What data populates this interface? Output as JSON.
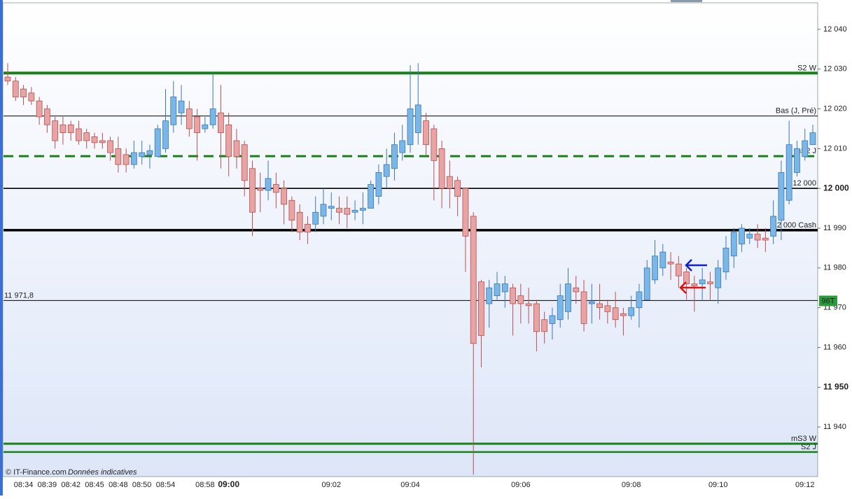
{
  "chart_data": {
    "type": "candlestick",
    "categories": [
      null,
      null,
      "08:34",
      null,
      null,
      "08:39",
      null,
      null,
      "08:42",
      null,
      null,
      "08:45",
      null,
      null,
      "08:48",
      null,
      null,
      "08:50",
      null,
      null,
      "08:54",
      null,
      null,
      null,
      null,
      "08:58",
      null,
      null,
      "09:00",
      null,
      null,
      null,
      null,
      null,
      null,
      null,
      null,
      null,
      null,
      null,
      null,
      "09:02",
      null,
      null,
      null,
      null,
      null,
      null,
      null,
      null,
      null,
      "09:04",
      null,
      null,
      null,
      null,
      null,
      null,
      null,
      null,
      null,
      null,
      null,
      null,
      null,
      "09:06",
      null,
      null,
      null,
      null,
      null,
      null,
      null,
      null,
      null,
      null,
      null,
      null,
      null,
      "09:08",
      null,
      null,
      null,
      null,
      null,
      null,
      null,
      null,
      null,
      null,
      "09:10",
      null,
      null,
      null,
      null,
      null,
      null,
      null,
      null,
      null,
      null,
      "09:12",
      null
    ],
    "open": [
      12028,
      12027,
      12025,
      12024,
      12022,
      12020,
      12017,
      12016,
      12016,
      12015,
      12014,
      12013,
      12012,
      12012,
      12010,
      12008.5,
      12006,
      12008,
      12008.5,
      12008,
      12010,
      12016,
      12019,
      12020,
      12018,
      12015,
      12016,
      12019,
      12016,
      12012,
      12011,
      12005,
      12000,
      11999.5,
      12001,
      12000,
      11997,
      11994,
      11991,
      11991,
      11993,
      11995,
      11995,
      11995,
      11994,
      11994.5,
      11995,
      11998,
      12003,
      12005,
      12009,
      12011,
      12014,
      12017,
      12015,
      12010,
      12003,
      12002,
      12000,
      11993,
      11976.5,
      11971,
      11973,
      11974,
      11975,
      11973,
      11971,
      11971,
      11967,
      11966,
      11967,
      11969,
      11975,
      11974,
      11971,
      11971,
      11970.5,
      11970,
      11968.5,
      11968,
      11970,
      11972,
      11977,
      11980,
      11981.5,
      11981,
      11979,
      11976,
      11976,
      11976.5,
      11975,
      11979,
      11983,
      11986,
      11987.5,
      11988.5,
      11987.5,
      11988,
      11992,
      11997,
      12004,
      12008,
      12011
    ],
    "high": [
      12031.5,
      12028,
      12026,
      12025.5,
      12023,
      12021,
      12018,
      12018,
      12017,
      12017,
      12015,
      12014,
      12014,
      12013,
      12013,
      12010,
      12012,
      12012,
      12011,
      12016,
      12025,
      12027,
      12026,
      12022,
      12020,
      12018,
      12029,
      12026,
      12019,
      12015,
      12012,
      12007,
      12004,
      12007,
      12004,
      12002,
      11998,
      11996,
      11993,
      11998,
      12000,
      11999,
      11998,
      11998,
      11997,
      11999,
      12002,
      12006,
      12010,
      12014,
      12016,
      12031,
      12031.5,
      12019,
      12016,
      12012,
      12007,
      12003,
      12000,
      11994,
      11977,
      11977,
      11979,
      11978,
      11976,
      11976,
      11975,
      11972,
      11969,
      11970,
      11976,
      11980,
      11978,
      11977,
      11976,
      11976,
      11972,
      11974,
      11970,
      11973,
      11976,
      11982,
      11987,
      11986,
      11984,
      11983,
      11980,
      11978,
      11980,
      11979,
      11982,
      11988,
      11990,
      11991,
      11990,
      11991,
      11990,
      11997,
      12007,
      12017,
      12012,
      12015,
      12016
    ],
    "low": [
      12026,
      12022,
      12021,
      12021,
      12016,
      12014,
      12010,
      12011,
      12012,
      12011,
      12010,
      12010,
      12010,
      12007,
      12004,
      12004,
      12005,
      12006,
      12005,
      12008,
      12009,
      12014,
      12016,
      12013,
      12007,
      12014,
      12015,
      12005,
      12003,
      12005,
      11998,
      11988,
      11994,
      11997,
      11995,
      11991,
      11989,
      11987,
      11986,
      11989,
      11991,
      11992,
      11991,
      11990,
      11992,
      11991,
      11995,
      11996,
      12000,
      12002,
      12007,
      12009,
      12011,
      12008,
      11997,
      11995,
      11995,
      11993,
      11979,
      11928,
      11955,
      11965,
      11972,
      11970,
      11963,
      11966,
      11966,
      11959,
      11961,
      11962,
      11965,
      11967,
      11971,
      11964,
      11966,
      11967,
      11966,
      11965,
      11963,
      11967,
      11965,
      11972,
      11976,
      11978,
      11977,
      11975,
      11972,
      11969,
      11972,
      11972,
      11971,
      11977,
      11980,
      11984,
      11986,
      11985,
      11984,
      11986,
      11987,
      11996,
      12003,
      12007,
      12011
    ],
    "close": [
      12027,
      12023,
      12023,
      12022,
      12018,
      12016,
      12012,
      12014,
      12014,
      12012,
      12012,
      12011.5,
      12011.5,
      12009,
      12006,
      12006,
      12009,
      12009,
      12009.5,
      12015,
      12017,
      12023,
      12022,
      12015,
      12014,
      12016,
      12020,
      12014,
      12008,
      12008,
      12002,
      11994,
      11999.5,
      12002.5,
      11999,
      11996,
      11992,
      11989,
      11989,
      11994,
      11996,
      11995.5,
      11994,
      11993.5,
      11994.5,
      11995,
      12001,
      12004,
      12006,
      12011,
      12012,
      12020,
      12021,
      12011,
      12007,
      12000,
      12000,
      11998,
      11988,
      11961,
      11963,
      11975,
      11976,
      11976,
      11971,
      11971,
      11970.5,
      11964,
      11964,
      11968,
      11973,
      11976,
      11974,
      11966,
      11971.5,
      11970,
      11969,
      11967,
      11968,
      11970,
      11974,
      11980,
      11983,
      11984,
      11981,
      11978,
      11976,
      11975.5,
      11977,
      11976,
      11980,
      11985,
      11989,
      11990,
      11988.5,
      11987,
      11987,
      11993,
      12004,
      12011,
      12010,
      12012,
      12014
    ],
    "x_bold_index": 28,
    "ylim": [
      11927.7,
      12046.5
    ],
    "yticks": [
      {
        "value": 12040,
        "label": "12 040"
      },
      {
        "value": 12030,
        "label": "12 030"
      },
      {
        "value": 12020,
        "label": "12 020"
      },
      {
        "value": 12010,
        "label": "12 010"
      },
      {
        "value": 12000,
        "label": "12 000",
        "bold": true
      },
      {
        "value": 11990,
        "label": "11 990"
      },
      {
        "value": 11980,
        "label": "11 980"
      },
      {
        "value": 11970,
        "label": "11 970"
      },
      {
        "value": 11960,
        "label": "11 960"
      },
      {
        "value": 11950,
        "label": "11 950",
        "bold": true
      },
      {
        "value": 11940,
        "label": "11 940"
      }
    ],
    "levels": [
      {
        "label": "S2 W",
        "value": 12029,
        "color": "#178017",
        "width": 4,
        "dashed": false,
        "label_side": "right"
      },
      {
        "label": "Bas (J, Pré)",
        "value": 12018.2,
        "color": "#000000",
        "width": 1,
        "dashed": false,
        "label_side": "right"
      },
      {
        "label": "mS2 J",
        "value": 12008.1,
        "color": "#178017",
        "width": 3,
        "dashed": true,
        "label_side": "right"
      },
      {
        "label": "12 000",
        "value": 12000,
        "color": "#000000",
        "width": 1.6,
        "dashed": false,
        "label_side": "right"
      },
      {
        "label": "12 000 Cash",
        "value": 11989.5,
        "color": "#000000",
        "width": 3.5,
        "dashed": false,
        "label_side": "right"
      },
      {
        "label": "11 971,8",
        "value": 11971.8,
        "color": "#000000",
        "width": 1,
        "dashed": false,
        "label_side": "left"
      },
      {
        "label": "mS3 W",
        "value": 11935.8,
        "color": "#178017",
        "width": 3,
        "dashed": false,
        "label_side": "right"
      },
      {
        "label": "S2 J",
        "value": 11933.7,
        "color": "#178017",
        "width": 2.5,
        "dashed": false,
        "label_side": "right"
      }
    ],
    "up_color": "#7ab6e6",
    "down_color": "#e8a3a3",
    "price_badge": "96T",
    "source": "© IT-Finance.com",
    "note": "Données indicatives"
  }
}
